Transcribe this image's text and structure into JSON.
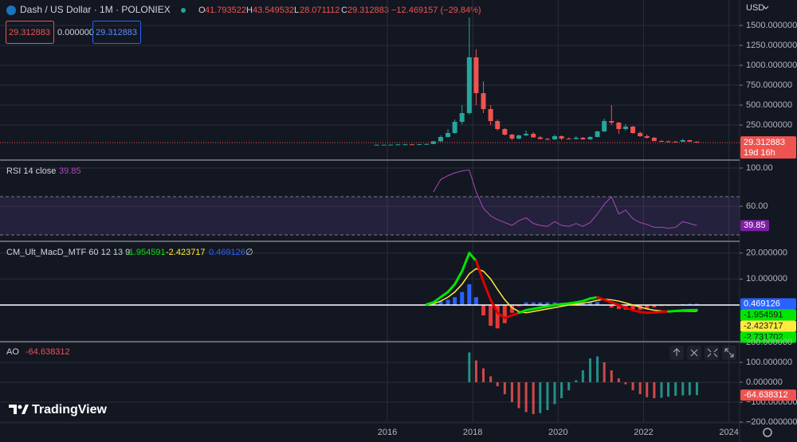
{
  "ui": {
    "title": "Dash / US Dollar · 1M · POLONIEX",
    "ohlc_letters": [
      "O",
      "H",
      "L",
      "C"
    ],
    "change_text": "−12.469157 (−29.84%)",
    "legend_boxes": [
      "29.312883",
      "0.000000",
      "29.312883"
    ],
    "currency": "USD",
    "countdown": "19d 16h",
    "brand": "TradingView"
  },
  "time_axis": {
    "xlim": [
      2006.93,
      2024.25
    ],
    "xticks": [
      2016,
      2018,
      2020,
      2022,
      2024
    ]
  },
  "chart_data": [
    {
      "type": "candlestick",
      "x": [
        2015.75,
        2015.92,
        2016.08,
        2016.25,
        2016.42,
        2016.58,
        2016.75,
        2016.92,
        2017.08,
        2017.25,
        2017.42,
        2017.58,
        2017.75,
        2017.92,
        2018.08,
        2018.25,
        2018.42,
        2018.58,
        2018.75,
        2018.92,
        2019.08,
        2019.25,
        2019.42,
        2019.58,
        2019.75,
        2019.92,
        2020.08,
        2020.25,
        2020.42,
        2020.58,
        2020.75,
        2020.92,
        2021.08,
        2021.25,
        2021.42,
        2021.58,
        2021.75,
        2021.92,
        2022.08,
        2022.25,
        2022.42,
        2022.58,
        2022.75,
        2022.92,
        2023.08,
        2023.25
      ],
      "open": [
        3,
        3,
        3,
        4,
        7,
        8,
        6,
        9,
        12,
        45,
        100,
        150,
        290,
        400,
        1100,
        650,
        450,
        300,
        200,
        130,
        80,
        120,
        140,
        95,
        75,
        70,
        110,
        80,
        75,
        90,
        70,
        100,
        170,
        300,
        280,
        200,
        230,
        150,
        110,
        90,
        50,
        45,
        42,
        40,
        60,
        41.793522
      ],
      "high": [
        4,
        4,
        4,
        8,
        12,
        9,
        10,
        14,
        50,
        120,
        200,
        320,
        500,
        1600,
        1200,
        800,
        500,
        320,
        210,
        140,
        130,
        180,
        160,
        110,
        90,
        130,
        120,
        95,
        110,
        100,
        110,
        180,
        330,
        500,
        290,
        260,
        240,
        170,
        130,
        100,
        60,
        55,
        50,
        75,
        65,
        43.549532
      ],
      "low": [
        2,
        3,
        3,
        4,
        6,
        5,
        6,
        8,
        11,
        40,
        95,
        140,
        260,
        380,
        500,
        400,
        250,
        180,
        120,
        60,
        70,
        110,
        90,
        70,
        60,
        65,
        60,
        70,
        70,
        65,
        65,
        95,
        160,
        250,
        140,
        180,
        140,
        100,
        80,
        45,
        40,
        38,
        35,
        38,
        40,
        28.071112
      ],
      "close": [
        3,
        3,
        4,
        7,
        8,
        6,
        9,
        12,
        45,
        100,
        150,
        290,
        400,
        1100,
        650,
        450,
        300,
        200,
        130,
        80,
        120,
        140,
        95,
        75,
        70,
        110,
        80,
        75,
        90,
        70,
        100,
        170,
        300,
        280,
        200,
        230,
        150,
        110,
        90,
        50,
        45,
        42,
        40,
        60,
        41.8,
        29.312883
      ],
      "up_color": "#26a69a",
      "down_color": "#ef5350",
      "ylim": [
        -180,
        1820
      ],
      "yticks": [
        {
          "value": 250,
          "label": "250.000000"
        },
        {
          "value": 500,
          "label": "500.000000"
        },
        {
          "value": 750,
          "label": "750.000000"
        },
        {
          "value": 1000,
          "label": "1000.000000"
        },
        {
          "value": 1250,
          "label": "1250.000000"
        },
        {
          "value": 1500,
          "label": "1500.000000"
        }
      ],
      "grid": true,
      "last_price_line": true
    },
    {
      "type": "line",
      "name": "RSI 14 close",
      "x": [
        2017.08,
        2017.25,
        2017.42,
        2017.58,
        2017.75,
        2017.92,
        2018.08,
        2018.25,
        2018.42,
        2018.58,
        2018.75,
        2018.92,
        2019.08,
        2019.25,
        2019.42,
        2019.58,
        2019.75,
        2019.92,
        2020.08,
        2020.25,
        2020.42,
        2020.58,
        2020.75,
        2020.92,
        2021.08,
        2021.25,
        2021.42,
        2021.58,
        2021.75,
        2021.92,
        2022.08,
        2022.25,
        2022.42,
        2022.58,
        2022.75,
        2022.92,
        2023.08,
        2023.25
      ],
      "values": [
        75,
        88,
        92,
        95,
        97,
        98,
        75,
        58,
        50,
        46,
        43,
        40,
        45,
        48,
        42,
        40,
        39,
        44,
        40,
        39,
        42,
        39,
        43,
        52,
        62,
        70,
        52,
        56,
        47,
        43,
        41,
        38,
        38,
        37,
        38,
        44,
        42,
        39.85
      ],
      "color": "#ab47bc",
      "band": [
        30,
        70
      ],
      "band_color": "rgba(126,87,194,0.16)",
      "ylim": [
        24.2,
        107.5
      ],
      "yticks": [
        {
          "value": 100,
          "label": "100.00"
        },
        {
          "value": 60,
          "label": "60.00"
        }
      ],
      "grid": true
    },
    {
      "type": "macd",
      "name": "CM_Ult_MacD_MTF 60 12 13 9",
      "x": [
        2016.92,
        2017.08,
        2017.25,
        2017.42,
        2017.58,
        2017.75,
        2017.92,
        2018.08,
        2018.25,
        2018.42,
        2018.58,
        2018.75,
        2018.92,
        2019.08,
        2019.25,
        2019.42,
        2019.58,
        2019.75,
        2019.92,
        2020.08,
        2020.25,
        2020.42,
        2020.58,
        2020.75,
        2020.92,
        2021.08,
        2021.25,
        2021.42,
        2021.58,
        2021.75,
        2021.92,
        2022.08,
        2022.25,
        2022.42,
        2022.58,
        2022.75,
        2022.92,
        2023.08,
        2023.25
      ],
      "macd": [
        0.2,
        1,
        3,
        5,
        8,
        13,
        20,
        17,
        9,
        2,
        -3,
        -5,
        -4,
        -3,
        -2,
        -1.5,
        -1,
        -0.5,
        0,
        0.3,
        0.6,
        1,
        1.5,
        2.5,
        3,
        2,
        1,
        0,
        -1,
        -2,
        -2.7,
        -3,
        -2.9,
        -2.7,
        -2.5,
        -2.3,
        -2.1,
        -2,
        -1.954591
      ],
      "signal": [
        0,
        0.5,
        1.5,
        3,
        5,
        8,
        12,
        14,
        13,
        10,
        6,
        2,
        -1,
        -2.5,
        -3,
        -2.5,
        -2,
        -1.5,
        -1,
        -0.5,
        0,
        0.3,
        0.7,
        1.2,
        1.8,
        2.2,
        2,
        1.5,
        0.8,
        0,
        -0.8,
        -1.5,
        -2,
        -2.3,
        -2.4,
        -2.45,
        -2.44,
        -2.43,
        -2.423717
      ],
      "histogram": [
        0.2,
        0.5,
        1.5,
        2,
        3,
        5,
        8,
        3,
        -4,
        -8,
        -9,
        -7,
        -3,
        -0.5,
        1,
        1,
        1,
        1,
        1,
        0.8,
        0.6,
        0.7,
        0.8,
        1.3,
        1.2,
        -0.2,
        -1,
        -1.5,
        -1.8,
        -2,
        -1.9,
        -1.5,
        -0.9,
        -0.4,
        -0.1,
        0.15,
        0.34,
        0.43,
        0.469126
      ],
      "macd_up_color": "#00e600",
      "macd_down_color": "#e00000",
      "signal_color": "#ffeb3b",
      "hist_up_color": "#2962ff",
      "hist_down_color": "#e53935",
      "ylim": [
        -13.8,
        24.2
      ],
      "yticks": [
        {
          "value": 20,
          "label": "20.000000"
        },
        {
          "value": 10,
          "label": "10.000000"
        }
      ],
      "grid": true,
      "zero_line": true,
      "axis_labels": [
        {
          "value": 0.469126,
          "color": "#2962ff"
        },
        {
          "value": -1.954591,
          "color": "#00e600"
        },
        {
          "value": -2.423717,
          "color": "#ffeb3b"
        },
        {
          "value": -2.731702,
          "color": "#00e600"
        }
      ],
      "legend_symbol": "∅"
    },
    {
      "type": "histogram",
      "name": "AO",
      "x": [
        2017.92,
        2018.08,
        2018.25,
        2018.42,
        2018.58,
        2018.75,
        2018.92,
        2019.08,
        2019.25,
        2019.42,
        2019.58,
        2019.75,
        2019.92,
        2020.08,
        2020.25,
        2020.42,
        2020.58,
        2020.75,
        2020.92,
        2021.08,
        2021.25,
        2021.42,
        2021.58,
        2021.75,
        2021.92,
        2022.08,
        2022.25,
        2022.42,
        2022.58,
        2022.75,
        2022.92,
        2023.08,
        2023.25
      ],
      "values": [
        150,
        110,
        70,
        30,
        -20,
        -60,
        -100,
        -130,
        -150,
        -160,
        -155,
        -140,
        -110,
        -80,
        -40,
        10,
        60,
        120,
        130,
        100,
        60,
        20,
        -10,
        -40,
        -60,
        -75,
        -80,
        -78,
        -72,
        -68,
        -66,
        -65,
        -64.638312
      ],
      "up_color": "#26a69a",
      "down_color": "#ef5350",
      "ylim": [
        -200,
        200
      ],
      "yticks": [
        {
          "value": 200,
          "label": "200.000000"
        },
        {
          "value": 100,
          "label": "100.000000"
        },
        {
          "value": 0,
          "label": "0.000000"
        },
        {
          "value": -100,
          "label": "−100.000000"
        },
        {
          "value": -200,
          "label": "−200.000000"
        }
      ],
      "grid": true
    }
  ]
}
